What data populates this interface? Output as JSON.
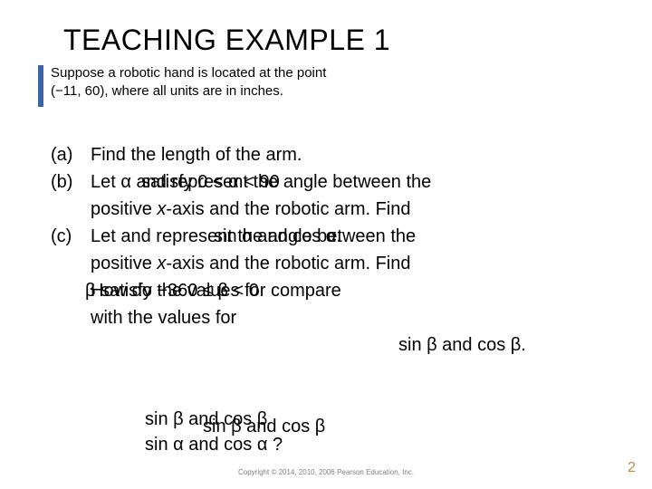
{
  "accent_color": "#3b64a0",
  "title": "TEACHING EXAMPLE 1",
  "intro_line1": "Suppose a robotic hand is located at the point",
  "intro_line2": "(−11, 60), where all units are in inches.",
  "items": [
    {
      "label": "(a)",
      "text": "Find the length of the arm."
    },
    {
      "label": "(b)",
      "text": "Let α     and represent the angle between the"
    },
    {
      "label": "",
      "text": "positive x-axis and the robotic arm. Find"
    },
    {
      "label": "(c)",
      "text": "Let             and represent the angle between the"
    },
    {
      "label": "",
      "text": "positive x-axis and the robotic arm. Find"
    },
    {
      "label": "",
      "text": "How do the values for                                  compare"
    },
    {
      "label": "",
      "text": "with the values for"
    }
  ],
  "overlays": {
    "o1": "satisfy 0 < α < 90",
    "o2": "sin α and cos α.",
    "o3": "β satisfy −360 ≤ β < 0",
    "o4": "sin β and cos β.",
    "o5": "sin β and cos β"
  },
  "math_bottom1": "sin β and cos β",
  "math_bottom2": "sin α  and  cos α ?",
  "footer": "Copyright © 2014, 2010, 2006  Pearson Education, Inc.",
  "page_number": "2"
}
